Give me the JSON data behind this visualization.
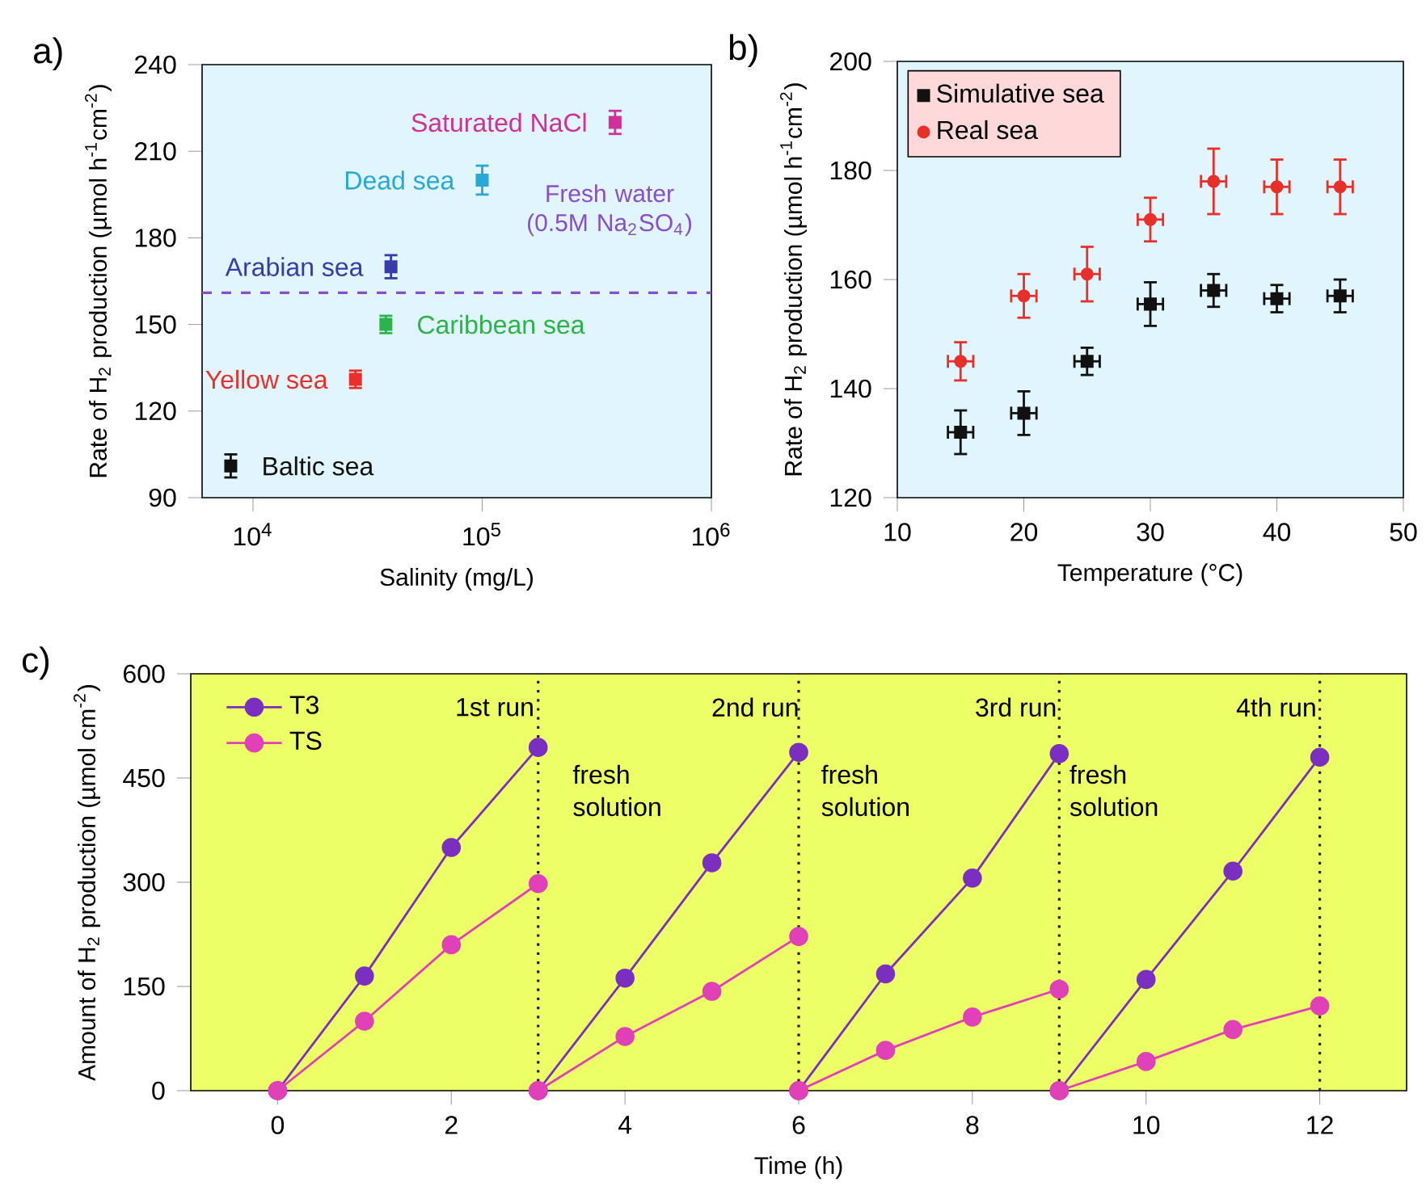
{
  "chart_data": [
    {
      "type": "scatter",
      "title": "a)",
      "xlabel": "Salinity (mg/L)",
      "ylabel": "Rate of H$_{2}$ production (µmol h$^{-1}$cm$^{-2}$)",
      "marker": "square",
      "log": "x",
      "x": [
        8000,
        28000,
        38000,
        40000,
        100000,
        380000
      ],
      "values": [
        101,
        131,
        150,
        170,
        200,
        220
      ],
      "errors": [
        4,
        3,
        3,
        4,
        5,
        4
      ],
      "colors": [
        "#111111",
        "#e8302a",
        "#2db34a",
        "#3a3aa8",
        "#28a8d8",
        "#d0309a"
      ],
      "xlim": [
        6000,
        1000000
      ],
      "xticks": [
        {
          "value": 10000,
          "label": "10$^{4}$"
        },
        {
          "value": 100000,
          "label": "10$^{5}$"
        },
        {
          "value": 1000000,
          "label": "10$^{6}$"
        }
      ],
      "ylim": [
        90,
        240
      ],
      "yticks": [
        90,
        120,
        150,
        180,
        210,
        240
      ],
      "ref_lines": [
        {
          "axis": "y",
          "value": 161,
          "label": "Fresh water (0.5M Na$_{2}$SO$_{4}$)",
          "color": "#8a4fc8",
          "line_style": "dashed"
        }
      ],
      "annotations": [
        {
          "text": "Baltic sea",
          "x": 8000,
          "y": 101
        },
        {
          "text": "Yellow sea",
          "x": 28000,
          "y": 131
        },
        {
          "text": "Caribbean sea",
          "x": 38000,
          "y": 150
        },
        {
          "text": "Arabian sea",
          "x": 40000,
          "y": 170
        },
        {
          "text": "Dead sea",
          "x": 100000,
          "y": 200
        },
        {
          "text": "Saturated NaCl",
          "x": 380000,
          "y": 220
        }
      ]
    },
    {
      "type": "scatter",
      "title": "b)",
      "xlabel": "Temperature (°C)",
      "ylabel": "Rate of H$_{2}$ production (µmol h$^{-1}$cm$^{-2}$)",
      "legend": "top left",
      "x": [
        15,
        20,
        25,
        30,
        35,
        40,
        45
      ],
      "xlim": [
        10,
        50
      ],
      "xticks": [
        10,
        20,
        30,
        40,
        50
      ],
      "ylim": [
        120,
        200
      ],
      "yticks": [
        120,
        140,
        160,
        180,
        200
      ],
      "series": [
        {
          "name": "Simulative sea",
          "color": "#111111",
          "marker": "square",
          "values": [
            132,
            135.5,
            145,
            155.5,
            158,
            156.5,
            157
          ],
          "errors": [
            4,
            4,
            2.5,
            4,
            3,
            2.5,
            3
          ],
          "xerrors": [
            1,
            1,
            1,
            1,
            1,
            1,
            1
          ]
        },
        {
          "name": "Real sea",
          "color": "#e8302a",
          "marker": "circle",
          "values": [
            145,
            157,
            161,
            171,
            178,
            177,
            177
          ],
          "errors": [
            3.5,
            4,
            5,
            4,
            6,
            5,
            5
          ],
          "xerrors": [
            1,
            1,
            1,
            1,
            1,
            1,
            1
          ]
        }
      ]
    },
    {
      "type": "line",
      "title": "c)",
      "xlabel": "Time (h)",
      "ylabel": "Amount of H$_{2}$ production (µmol cm$^{-2}$)",
      "legend": "top left",
      "marker": "circle",
      "xlim": [
        -1,
        13
      ],
      "xticks": [
        0,
        2,
        4,
        6,
        8,
        10,
        12
      ],
      "ylim": [
        0,
        600
      ],
      "yticks": [
        0,
        150,
        300,
        450,
        600
      ],
      "series": [
        {
          "name": "T3",
          "color": "#7b2fc0",
          "x": [
            0,
            1,
            2,
            3
          ],
          "values": [
            0,
            165,
            350,
            494
          ]
        },
        {
          "name": "TS",
          "color": "#e040b8",
          "x": [
            0,
            1,
            2,
            3
          ],
          "values": [
            0,
            100,
            210,
            298
          ]
        },
        {
          "color": "#7b2fc0",
          "x": [
            3,
            4,
            5,
            6
          ],
          "values": [
            0,
            162,
            328,
            487
          ]
        },
        {
          "color": "#e040b8",
          "x": [
            3,
            4,
            5,
            6
          ],
          "values": [
            0,
            78,
            143,
            222
          ]
        },
        {
          "color": "#7b2fc0",
          "x": [
            6,
            7,
            8,
            9
          ],
          "values": [
            0,
            168,
            306,
            485
          ]
        },
        {
          "color": "#e040b8",
          "x": [
            6,
            7,
            8,
            9
          ],
          "values": [
            0,
            58,
            106,
            146
          ]
        },
        {
          "color": "#7b2fc0",
          "x": [
            9,
            10,
            11,
            12
          ],
          "values": [
            0,
            160,
            316,
            480
          ]
        },
        {
          "color": "#e040b8",
          "x": [
            9,
            10,
            11,
            12
          ],
          "values": [
            0,
            42,
            88,
            122
          ]
        }
      ],
      "ref_lines": [
        {
          "axis": "x",
          "value": 3,
          "color": "#222222",
          "line_style": "dotted"
        },
        {
          "axis": "x",
          "value": 6,
          "color": "#222222",
          "line_style": "dotted"
        },
        {
          "axis": "x",
          "value": 9,
          "color": "#222222",
          "line_style": "dotted"
        },
        {
          "axis": "x",
          "value": 12,
          "color": "#222222",
          "line_style": "dotted"
        }
      ],
      "annotations": [
        "1st run",
        "2nd run",
        "3rd run",
        "4th run",
        "fresh solution",
        "fresh solution",
        "fresh solution"
      ]
    }
  ]
}
